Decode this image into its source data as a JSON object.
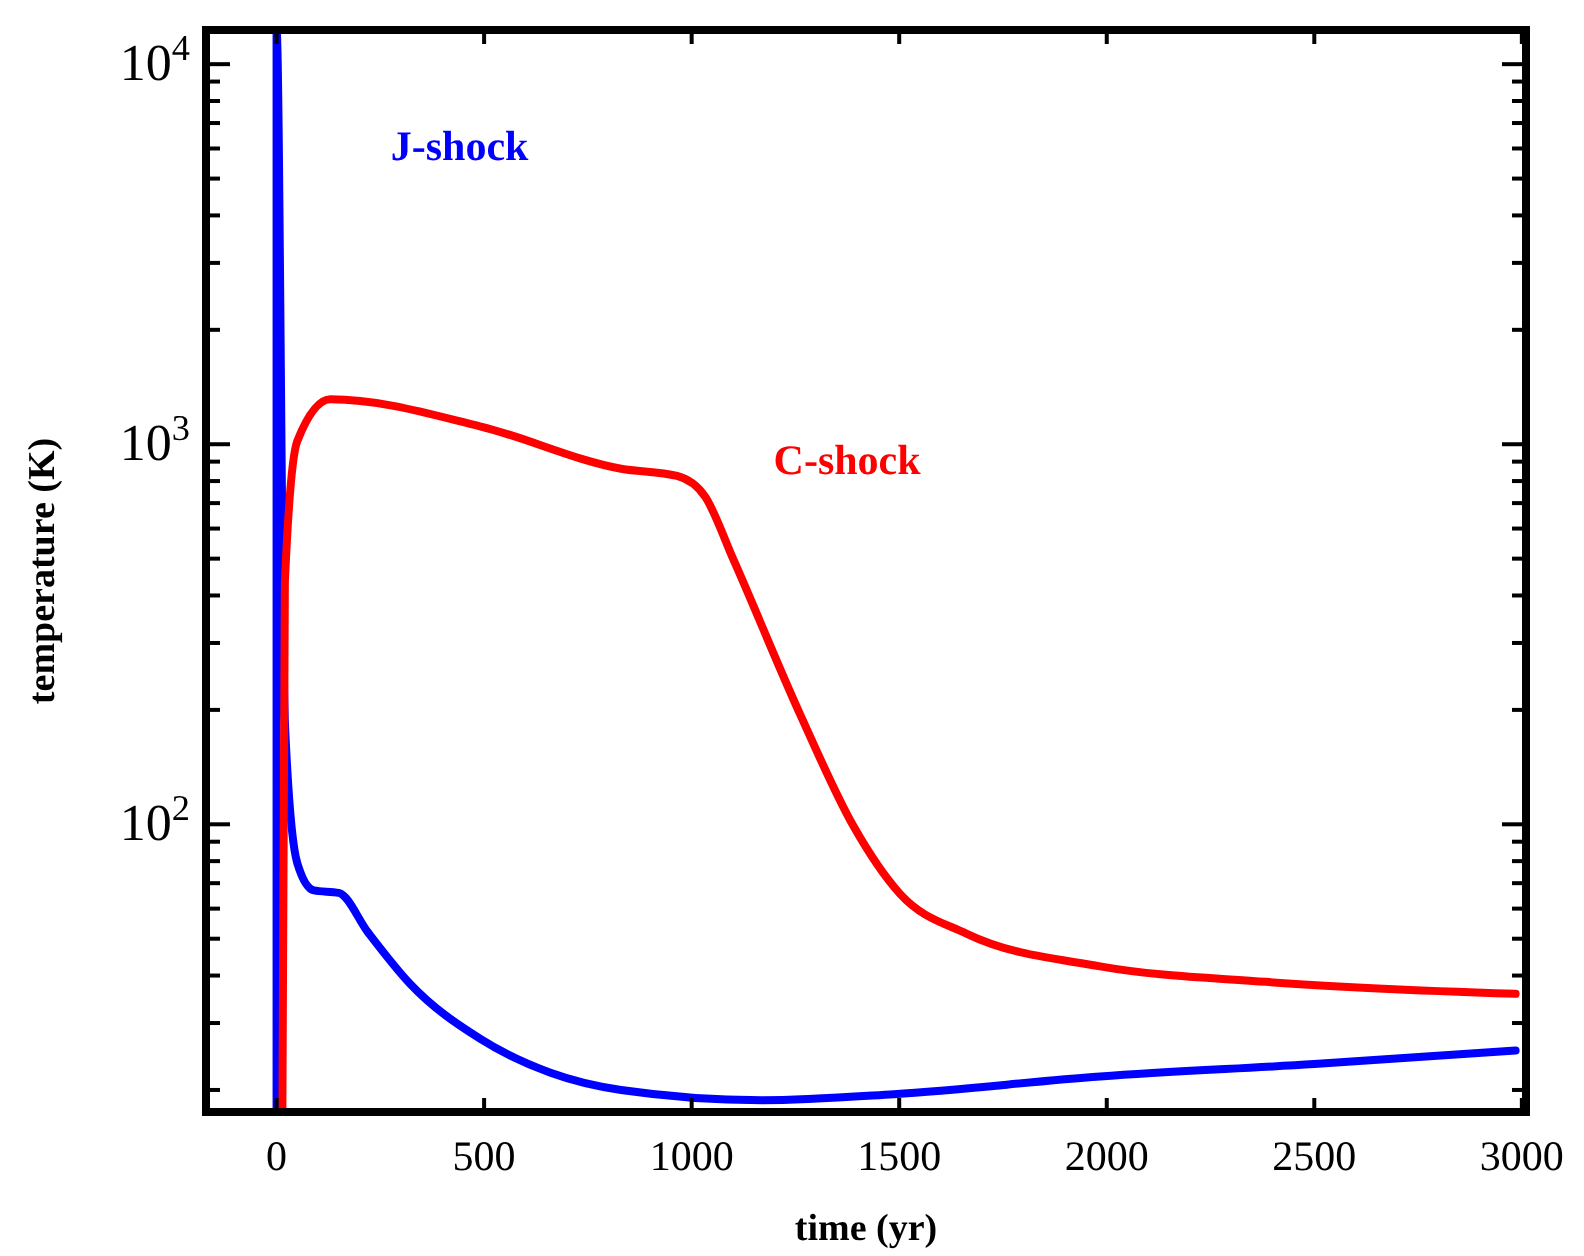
{
  "chart_data": {
    "type": "line",
    "xlabel": "time (yr)",
    "ylabel": "temperature (K)",
    "log": "y",
    "xlim": [
      -170,
      3010
    ],
    "xticks": [
      0,
      500,
      1000,
      1500,
      2000,
      2500,
      3000
    ],
    "ylim": [
      17.5,
      12300
    ],
    "yticks": [
      {
        "value": 20,
        "label": null
      },
      {
        "value": 30,
        "label": null
      },
      {
        "value": 40,
        "label": null
      },
      {
        "value": 50,
        "label": null
      },
      {
        "value": 60,
        "label": null
      },
      {
        "value": 70,
        "label": null
      },
      {
        "value": 80,
        "label": null
      },
      {
        "value": 90,
        "label": null
      },
      {
        "value": 100,
        "label": "10$^{2}$"
      },
      {
        "value": 200,
        "label": null
      },
      {
        "value": 300,
        "label": null
      },
      {
        "value": 400,
        "label": null
      },
      {
        "value": 500,
        "label": null
      },
      {
        "value": 600,
        "label": null
      },
      {
        "value": 700,
        "label": null
      },
      {
        "value": 800,
        "label": null
      },
      {
        "value": 900,
        "label": null
      },
      {
        "value": 1000,
        "label": "10$^{3}$"
      },
      {
        "value": 2000,
        "label": null
      },
      {
        "value": 3000,
        "label": null
      },
      {
        "value": 4000,
        "label": null
      },
      {
        "value": 5000,
        "label": null
      },
      {
        "value": 6000,
        "label": null
      },
      {
        "value": 7000,
        "label": null
      },
      {
        "value": 8000,
        "label": null
      },
      {
        "value": 9000,
        "label": null
      },
      {
        "value": 10000,
        "label": "10$^{4}$"
      }
    ],
    "grid": false,
    "marker": "none",
    "line_style": "solid",
    "series": [
      {
        "name": "J-shock",
        "color": "#0000ff",
        "x": [
          0,
          0,
          20,
          50,
          90,
          150,
          220,
          322,
          490,
          660,
          830,
          1170,
          1487,
          1984,
          2500,
          2985
        ],
        "values": [
          17.5,
          12300,
          186,
          79,
          67,
          66,
          52,
          38,
          27.3,
          22.2,
          20,
          18.8,
          19.5,
          21.7,
          23.4,
          25.4
        ]
      },
      {
        "name": "C-shock",
        "color": "#ff0000",
        "x": [
          14,
          20,
          50,
          130,
          490,
          830,
          965,
          1033,
          1101,
          1261,
          1390,
          1502,
          1663,
          1984,
          2384,
          2985
        ],
        "values": [
          17.5,
          433,
          1020,
          1313,
          1115,
          862,
          825,
          726,
          496,
          195,
          98.8,
          65.6,
          51.5,
          42.3,
          38.5,
          35.8
        ]
      }
    ]
  }
}
